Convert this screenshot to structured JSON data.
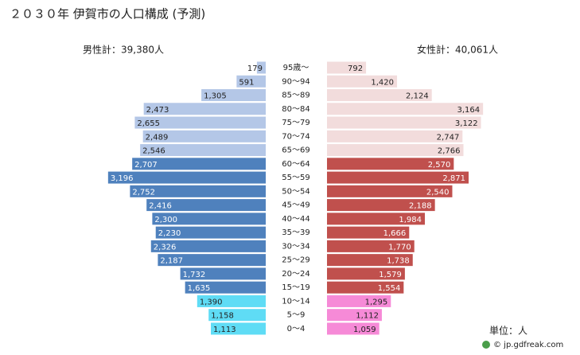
{
  "chart_data": {
    "type": "pyramid",
    "title": "２０３０年 伊賀市の人口構成 (予測)",
    "categories": [
      "95歳～",
      "90～94",
      "85～89",
      "80～84",
      "75～79",
      "70～74",
      "65～69",
      "60～64",
      "55～59",
      "50～54",
      "45～49",
      "40～44",
      "35～39",
      "30～34",
      "25～29",
      "20～24",
      "15～19",
      "10～14",
      "5～9",
      "0～4"
    ],
    "series": [
      {
        "name": "男性計：39,380人",
        "side": "left",
        "values": [
          179,
          591,
          1305,
          2473,
          2655,
          2489,
          2546,
          2707,
          3196,
          2752,
          2416,
          2300,
          2230,
          2326,
          2187,
          1732,
          1635,
          1390,
          1158,
          1113
        ],
        "value_labels": [
          "179",
          "591",
          "1,305",
          "2,473",
          "2,655",
          "2,489",
          "2,546",
          "2,707",
          "3,196",
          "2,752",
          "2,416",
          "2,300",
          "2,230",
          "2,326",
          "2,187",
          "1,732",
          "1,635",
          "1,390",
          "1,158",
          "1,113"
        ],
        "colors": [
          "#b4c7e7",
          "#b4c7e7",
          "#b4c7e7",
          "#b4c7e7",
          "#b4c7e7",
          "#b4c7e7",
          "#b4c7e7",
          "#4f81bd",
          "#4f81bd",
          "#4f81bd",
          "#4f81bd",
          "#4f81bd",
          "#4f81bd",
          "#4f81bd",
          "#4f81bd",
          "#4f81bd",
          "#4f81bd",
          "#5fdcf5",
          "#5fdcf5",
          "#5fdcf5"
        ]
      },
      {
        "name": "女性計：40,061人",
        "side": "right",
        "values": [
          792,
          1420,
          2124,
          3164,
          3122,
          2747,
          2766,
          2570,
          2871,
          2540,
          2188,
          1984,
          1666,
          1770,
          1738,
          1579,
          1554,
          1295,
          1112,
          1059
        ],
        "value_labels": [
          "792",
          "1,420",
          "2,124",
          "3,164",
          "3,122",
          "2,747",
          "2,766",
          "2,570",
          "2,871",
          "2,540",
          "2,188",
          "1,984",
          "1,666",
          "1,770",
          "1,738",
          "1,579",
          "1,554",
          "1,295",
          "1,112",
          "1,059"
        ],
        "colors": [
          "#f2dcdc",
          "#f2dcdc",
          "#f2dcdc",
          "#f2dcdc",
          "#f2dcdc",
          "#f2dcdc",
          "#f2dcdc",
          "#c0504d",
          "#c0504d",
          "#c0504d",
          "#c0504d",
          "#c0504d",
          "#c0504d",
          "#c0504d",
          "#c0504d",
          "#c0504d",
          "#c0504d",
          "#f68ad7",
          "#f68ad7",
          "#f68ad7"
        ]
      }
    ],
    "unit_label": "単位：人",
    "credit": "© jp.gdfreak.com"
  }
}
